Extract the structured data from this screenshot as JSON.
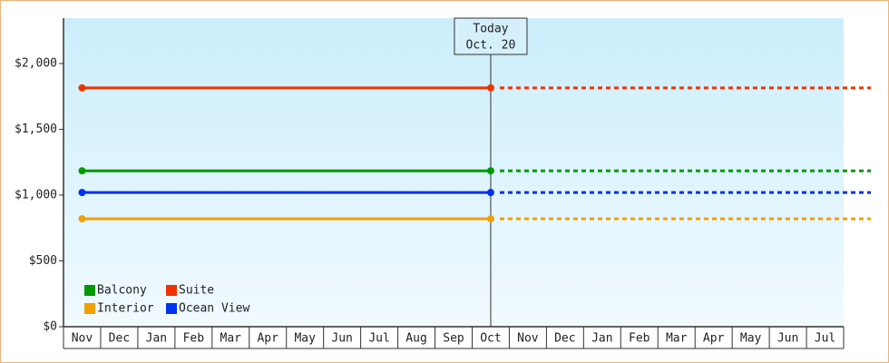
{
  "chart_data": {
    "type": "line",
    "categories": [
      "Nov",
      "Dec",
      "Jan",
      "Feb",
      "Mar",
      "Apr",
      "May",
      "Jun",
      "Jul",
      "Aug",
      "Sep",
      "Oct",
      "Nov",
      "Dec",
      "Jan",
      "Feb",
      "Mar",
      "Apr",
      "May",
      "Jun",
      "Jul"
    ],
    "series": [
      {
        "name": "Balcony",
        "color": "#009900",
        "values": [
          1185,
          1185,
          1185,
          1185,
          1185,
          1185,
          1185,
          1185,
          1185,
          1185,
          1185,
          1185,
          null,
          null,
          null,
          null,
          null,
          null,
          null,
          null,
          null
        ]
      },
      {
        "name": "Suite",
        "color": "#ee3300",
        "values": [
          1815,
          1815,
          1815,
          1815,
          1815,
          1815,
          1815,
          1815,
          1815,
          1815,
          1815,
          1815,
          null,
          null,
          null,
          null,
          null,
          null,
          null,
          null,
          null
        ]
      },
      {
        "name": "Interior",
        "color": "#f0a000",
        "values": [
          820,
          820,
          820,
          820,
          820,
          820,
          820,
          820,
          820,
          820,
          820,
          820,
          null,
          null,
          null,
          null,
          null,
          null,
          null,
          null,
          null
        ]
      },
      {
        "name": "Ocean View",
        "color": "#0033ee",
        "values": [
          1020,
          1020,
          1020,
          1020,
          1020,
          1020,
          1020,
          1020,
          1020,
          1020,
          1020,
          1020,
          null,
          null,
          null,
          null,
          null,
          null,
          null,
          null,
          null
        ]
      }
    ],
    "annotation": [
      "Today",
      "Oct. 20"
    ],
    "ylim": [
      0,
      2345
    ],
    "yticks": [
      {
        "value": 0,
        "label": "$0"
      },
      {
        "value": 500,
        "label": "$500"
      },
      {
        "value": 1000,
        "label": "$1,000"
      },
      {
        "value": 1500,
        "label": "$1,500"
      },
      {
        "value": 2000,
        "label": "$2,000"
      }
    ],
    "projection": "dotted"
  }
}
